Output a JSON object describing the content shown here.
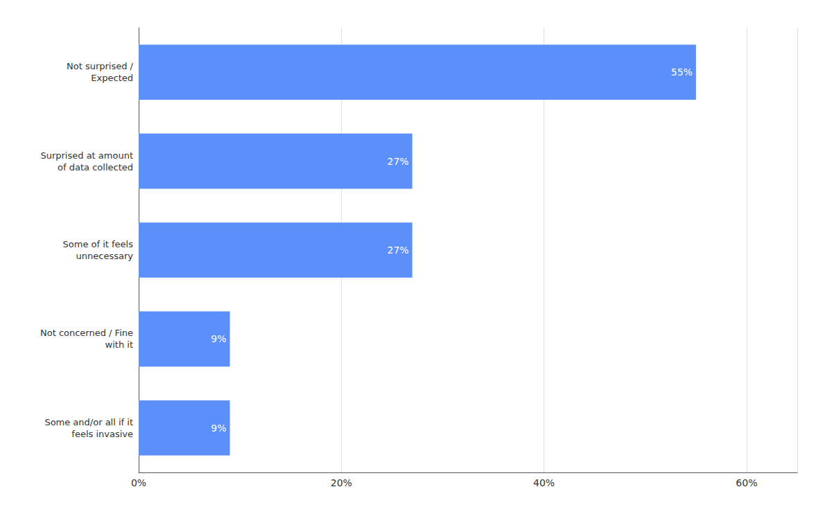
{
  "chart_data": {
    "type": "bar",
    "orientation": "horizontal",
    "categories": [
      "Some and/or all if it\nfeels invasive",
      "Not concerned / Fine\nwith it",
      "Some of it feels\nunnecessary",
      "Surprised at amount\nof data collected",
      "Not surprised /\nExpected"
    ],
    "values": [
      9,
      9,
      27,
      27,
      55
    ],
    "value_labels": [
      "9%",
      "9%",
      "27%",
      "27%",
      "55%"
    ],
    "data_labels": true,
    "color": "#5B8FF9",
    "xlim": [
      0,
      65
    ],
    "xticks": [
      {
        "value": 0,
        "label": "0%"
      },
      {
        "value": 20,
        "label": "20%"
      },
      {
        "value": 40,
        "label": "40%"
      },
      {
        "value": 60,
        "label": "60%"
      }
    ],
    "grid": true
  }
}
